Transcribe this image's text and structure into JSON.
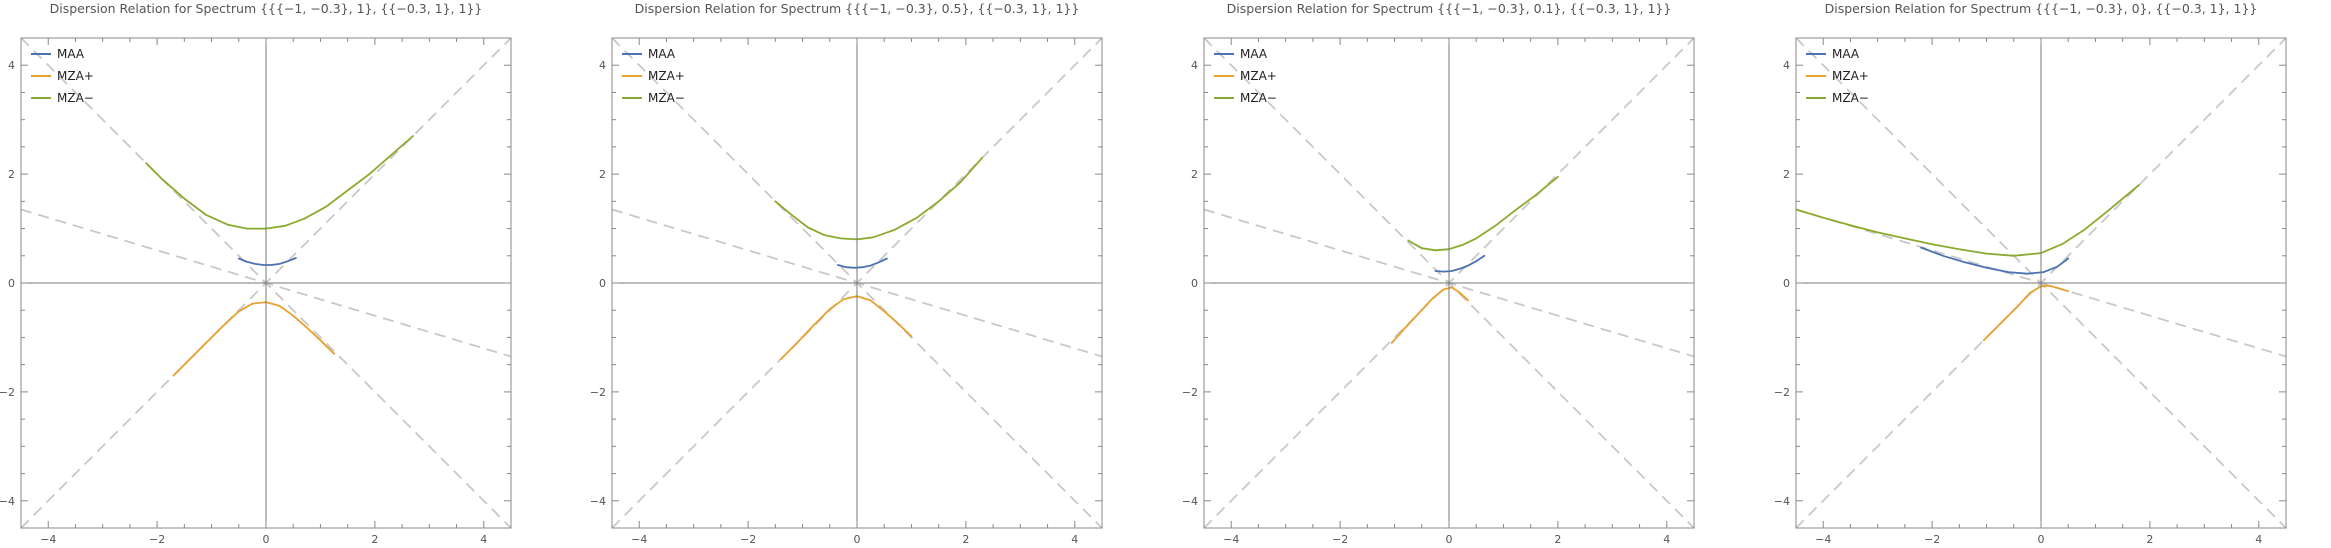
{
  "chart_data": [
    {
      "type": "line",
      "title": "Dispersion Relation for Spectrum {{{−1, −0.3}, 1}, {{−0.3, 1}, 1}}",
      "xlim": [
        -4.5,
        4.5
      ],
      "ylim": [
        -4.5,
        4.5
      ],
      "xticks": [
        -4,
        -2,
        0,
        2,
        4
      ],
      "yticks": [
        -4,
        -2,
        0,
        2,
        4
      ],
      "legend": [
        "MAA",
        "MZA+",
        "MZA−"
      ],
      "legend_position": "top-left",
      "reference_lines": [
        {
          "style": "dashed",
          "color": "#c8c8c8",
          "slope": 1,
          "intercept": 0
        },
        {
          "style": "dashed",
          "color": "#c8c8c8",
          "slope": -1,
          "intercept": 0
        },
        {
          "style": "dashed",
          "color": "#c8c8c8",
          "slope": -0.3,
          "intercept": 0
        }
      ],
      "series": [
        {
          "name": "MAA",
          "color": "#4a72b0",
          "x": [
            -0.5,
            -0.35,
            -0.2,
            -0.05,
            0.1,
            0.25,
            0.4,
            0.55
          ],
          "y": [
            0.45,
            0.39,
            0.35,
            0.33,
            0.33,
            0.35,
            0.4,
            0.46
          ]
        },
        {
          "name": "MZA+",
          "color": "#e8a030",
          "x": [
            -1.7,
            -1.4,
            -1.1,
            -0.8,
            -0.5,
            -0.25,
            0,
            0.25,
            0.5,
            0.75,
            1.0,
            1.25
          ],
          "y": [
            -1.7,
            -1.4,
            -1.1,
            -0.8,
            -0.52,
            -0.38,
            -0.35,
            -0.42,
            -0.6,
            -0.82,
            -1.05,
            -1.3
          ]
        },
        {
          "name": "MZA−",
          "color": "#8aaa2e",
          "x": [
            -2.2,
            -1.9,
            -1.5,
            -1.1,
            -0.7,
            -0.35,
            0,
            0.35,
            0.7,
            1.1,
            1.5,
            1.9,
            2.3,
            2.7
          ],
          "y": [
            2.2,
            1.9,
            1.55,
            1.25,
            1.07,
            1.0,
            1.0,
            1.05,
            1.18,
            1.4,
            1.7,
            2.0,
            2.35,
            2.7
          ]
        }
      ]
    },
    {
      "type": "line",
      "title": "Dispersion Relation for Spectrum {{{−1, −0.3}, 0.5}, {{−0.3, 1}, 1}}",
      "xlim": [
        -4.5,
        4.5
      ],
      "ylim": [
        -4.5,
        4.5
      ],
      "xticks": [
        -4,
        -2,
        0,
        2,
        4
      ],
      "yticks": [
        -4,
        -2,
        0,
        2,
        4
      ],
      "legend": [
        "MAA",
        "MZA+",
        "MZA−"
      ],
      "legend_position": "top-left",
      "reference_lines": [
        {
          "style": "dashed",
          "color": "#c8c8c8",
          "slope": 1,
          "intercept": 0
        },
        {
          "style": "dashed",
          "color": "#c8c8c8",
          "slope": -1,
          "intercept": 0
        },
        {
          "style": "dashed",
          "color": "#c8c8c8",
          "slope": -0.3,
          "intercept": 0
        }
      ],
      "series": [
        {
          "name": "MAA",
          "color": "#4a72b0",
          "x": [
            -0.35,
            -0.2,
            -0.05,
            0.1,
            0.25,
            0.4,
            0.55
          ],
          "y": [
            0.33,
            0.29,
            0.28,
            0.29,
            0.32,
            0.38,
            0.45
          ]
        },
        {
          "name": "MZA+",
          "color": "#e8a030",
          "x": [
            -1.4,
            -1.1,
            -0.8,
            -0.5,
            -0.25,
            0,
            0.25,
            0.5,
            0.75,
            1.0
          ],
          "y": [
            -1.4,
            -1.1,
            -0.78,
            -0.48,
            -0.3,
            -0.24,
            -0.32,
            -0.52,
            -0.74,
            -0.98
          ]
        },
        {
          "name": "MZA−",
          "color": "#8aaa2e",
          "x": [
            -1.5,
            -1.2,
            -0.9,
            -0.6,
            -0.3,
            0,
            0.3,
            0.7,
            1.1,
            1.5,
            1.9,
            2.3
          ],
          "y": [
            1.5,
            1.25,
            1.02,
            0.88,
            0.82,
            0.8,
            0.84,
            0.98,
            1.2,
            1.5,
            1.85,
            2.3
          ]
        }
      ]
    },
    {
      "type": "line",
      "title": "Dispersion Relation for Spectrum {{{−1, −0.3}, 0.1}, {{−0.3, 1}, 1}}",
      "xlim": [
        -4.5,
        4.5
      ],
      "ylim": [
        -4.5,
        4.5
      ],
      "xticks": [
        -4,
        -2,
        0,
        2,
        4
      ],
      "yticks": [
        -4,
        -2,
        0,
        2,
        4
      ],
      "legend": [
        "MAA",
        "MZA+",
        "MZA−"
      ],
      "legend_position": "top-left",
      "reference_lines": [
        {
          "style": "dashed",
          "color": "#c8c8c8",
          "slope": 1,
          "intercept": 0
        },
        {
          "style": "dashed",
          "color": "#c8c8c8",
          "slope": -1,
          "intercept": 0
        },
        {
          "style": "dashed",
          "color": "#c8c8c8",
          "slope": -0.3,
          "intercept": 0
        }
      ],
      "series": [
        {
          "name": "MAA",
          "color": "#4a72b0",
          "x": [
            -0.25,
            -0.1,
            0.05,
            0.2,
            0.35,
            0.5,
            0.65
          ],
          "y": [
            0.22,
            0.21,
            0.22,
            0.26,
            0.32,
            0.4,
            0.5
          ]
        },
        {
          "name": "MZA+",
          "color": "#e8a030",
          "x": [
            -1.05,
            -0.8,
            -0.55,
            -0.3,
            -0.1,
            0.05,
            0.2,
            0.35
          ],
          "y": [
            -1.1,
            -0.82,
            -0.55,
            -0.28,
            -0.12,
            -0.08,
            -0.18,
            -0.32
          ]
        },
        {
          "name": "MZA−",
          "color": "#8aaa2e",
          "x": [
            -0.75,
            -0.5,
            -0.25,
            0,
            0.25,
            0.5,
            0.85,
            1.2,
            1.6,
            2.0
          ],
          "y": [
            0.78,
            0.64,
            0.6,
            0.62,
            0.7,
            0.82,
            1.05,
            1.32,
            1.62,
            1.95
          ]
        }
      ]
    },
    {
      "type": "line",
      "title": "Dispersion Relation for Spectrum {{{−1, −0.3}, 0}, {{−0.3, 1}, 1}}",
      "xlim": [
        -4.5,
        4.5
      ],
      "ylim": [
        -4.5,
        4.5
      ],
      "xticks": [
        -4,
        -2,
        0,
        2,
        4
      ],
      "yticks": [
        -4,
        -2,
        0,
        2,
        4
      ],
      "legend": [
        "MAA",
        "MZA+",
        "MZA−"
      ],
      "legend_position": "top-left",
      "reference_lines": [
        {
          "style": "dashed",
          "color": "#c8c8c8",
          "slope": 1,
          "intercept": 0
        },
        {
          "style": "dashed",
          "color": "#c8c8c8",
          "slope": -1,
          "intercept": 0
        },
        {
          "style": "dashed",
          "color": "#c8c8c8",
          "slope": -0.3,
          "intercept": 0
        }
      ],
      "series": [
        {
          "name": "MAA",
          "color": "#4a72b0",
          "x": [
            -2.2,
            -1.8,
            -1.4,
            -1.0,
            -0.6,
            -0.25,
            0.05,
            0.3,
            0.5
          ],
          "y": [
            0.65,
            0.5,
            0.38,
            0.28,
            0.2,
            0.17,
            0.2,
            0.3,
            0.45
          ]
        },
        {
          "name": "MZA+",
          "color": "#e8a030",
          "x": [
            -1.05,
            -0.75,
            -0.45,
            -0.2,
            0,
            0.15,
            0.3,
            0.5
          ],
          "y": [
            -1.05,
            -0.75,
            -0.45,
            -0.18,
            -0.06,
            -0.05,
            -0.09,
            -0.15
          ]
        },
        {
          "name": "MZA−",
          "color": "#8aaa2e",
          "x": [
            -4.5,
            -4.0,
            -3.5,
            -3.0,
            -2.5,
            -2.0,
            -1.5,
            -1.0,
            -0.5,
            0,
            0.4,
            0.8,
            1.2,
            1.8
          ],
          "y": [
            1.35,
            1.2,
            1.06,
            0.93,
            0.82,
            0.71,
            0.62,
            0.54,
            0.5,
            0.55,
            0.72,
            0.98,
            1.3,
            1.8
          ]
        }
      ]
    }
  ]
}
